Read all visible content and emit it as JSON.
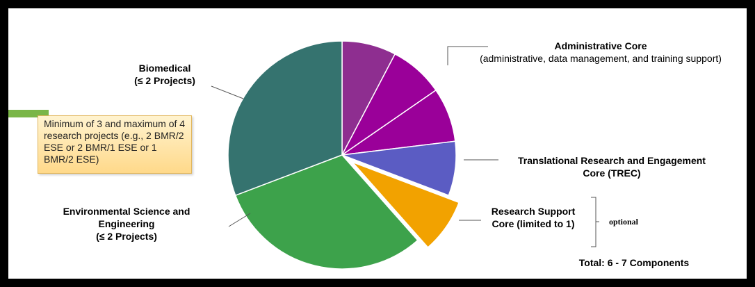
{
  "colors": {
    "admin": "#8e2e90",
    "admin_dark": "#9a0099",
    "trec": "#5b5cc3",
    "research_support": "#f2a200",
    "environmental": "#3da24b",
    "biomedical": "#35736f",
    "accent_bar": "#7ab648"
  },
  "chart_data": {
    "type": "pie",
    "slices": [
      {
        "key": "admin1",
        "component": "Administrative Core",
        "value": 1,
        "color": "#8e2e90"
      },
      {
        "key": "admin2",
        "component": "Administrative Core",
        "value": 1,
        "color": "#9a0099"
      },
      {
        "key": "admin3",
        "component": "Administrative Core",
        "value": 1,
        "color": "#9a0099"
      },
      {
        "key": "trec",
        "component": "Translational Research and Engagement Core (TREC)",
        "value": 1,
        "color": "#5b5cc3"
      },
      {
        "key": "rsc",
        "component": "Research Support Core (limited to 1)",
        "value": 1,
        "color": "#f2a200",
        "exploded": true
      },
      {
        "key": "ese",
        "component": "Environmental Science and Engineering",
        "value": 4,
        "color": "#3da24b"
      },
      {
        "key": "bmr",
        "component": "Biomedical",
        "value": 4,
        "color": "#35736f"
      }
    ],
    "labels": {
      "admin_title": "Administrative Core",
      "admin_sub": "(administrative, data management, and training support)",
      "trec_line1": "Translational Research and Engagement",
      "trec_line2": "Core (TREC)",
      "rsc_line1": "Research Support",
      "rsc_line2": "Core (limited to 1)",
      "optional": "optional",
      "total": "Total: 6 - 7 Components",
      "env_line1": "Environmental Science and",
      "env_line2": "Engineering",
      "env_line3": "(≤ 2 Projects)",
      "bio_line1": "Biomedical",
      "bio_line2": "(≤ 2 Projects)"
    },
    "note": "Minimum of 3 and maximum of 4 research projects (e.g., 2 BMR/2 ESE or 2 BMR/1 ESE or 1 BMR/2 ESE)"
  }
}
